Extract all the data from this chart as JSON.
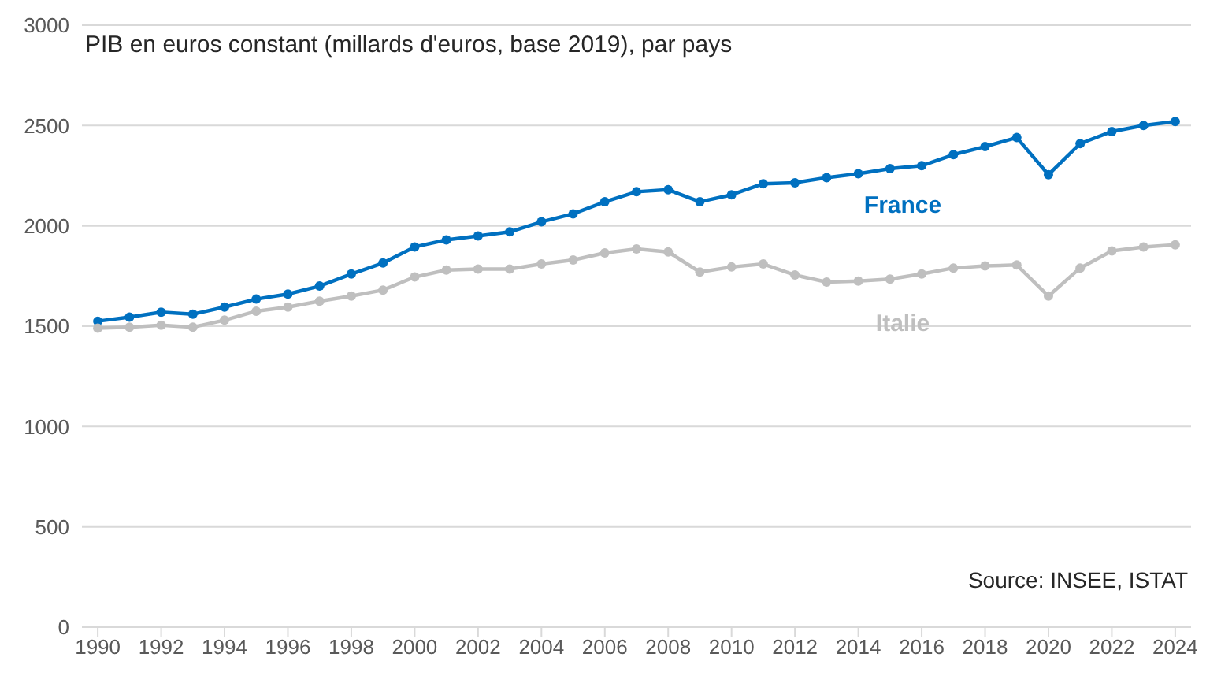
{
  "chart_data": {
    "type": "line",
    "title": "PIB en euros constant (millards d'euros, base 2019), par pays",
    "x": [
      1990,
      1991,
      1992,
      1993,
      1994,
      1995,
      1996,
      1997,
      1998,
      1999,
      2000,
      2001,
      2002,
      2003,
      2004,
      2005,
      2006,
      2007,
      2008,
      2009,
      2010,
      2011,
      2012,
      2013,
      2014,
      2015,
      2016,
      2017,
      2018,
      2019,
      2020,
      2021,
      2022,
      2023,
      2024
    ],
    "series": [
      {
        "name": "France",
        "color": "#0070c0",
        "values": [
          1525,
          1545,
          1570,
          1560,
          1595,
          1635,
          1660,
          1700,
          1760,
          1815,
          1895,
          1930,
          1950,
          1970,
          2020,
          2060,
          2120,
          2170,
          2180,
          2120,
          2155,
          2210,
          2215,
          2240,
          2260,
          2285,
          2300,
          2355,
          2395,
          2440,
          2255,
          2410,
          2470,
          2500,
          2520
        ]
      },
      {
        "name": "Italie",
        "color": "#bfbfbf",
        "values": [
          1490,
          1495,
          1505,
          1495,
          1530,
          1575,
          1595,
          1625,
          1650,
          1680,
          1745,
          1780,
          1785,
          1785,
          1810,
          1830,
          1865,
          1885,
          1870,
          1770,
          1795,
          1810,
          1755,
          1720,
          1725,
          1735,
          1760,
          1790,
          1800,
          1805,
          1650,
          1790,
          1875,
          1895,
          1905
        ]
      }
    ],
    "xlim": [
      1989.5,
      2024.5
    ],
    "xticks": [
      1990,
      1992,
      1994,
      1996,
      1998,
      2000,
      2002,
      2004,
      2006,
      2008,
      2010,
      2012,
      2014,
      2016,
      2018,
      2020,
      2022,
      2024
    ],
    "ylim": [
      0,
      3000
    ],
    "yticks": [
      0,
      500,
      1000,
      1500,
      2000,
      2500,
      3000
    ],
    "grid": "y",
    "legend": false,
    "marker": "circle",
    "line_style": "solid",
    "annotations": [
      "Source: INSEE, ISTAT"
    ]
  }
}
